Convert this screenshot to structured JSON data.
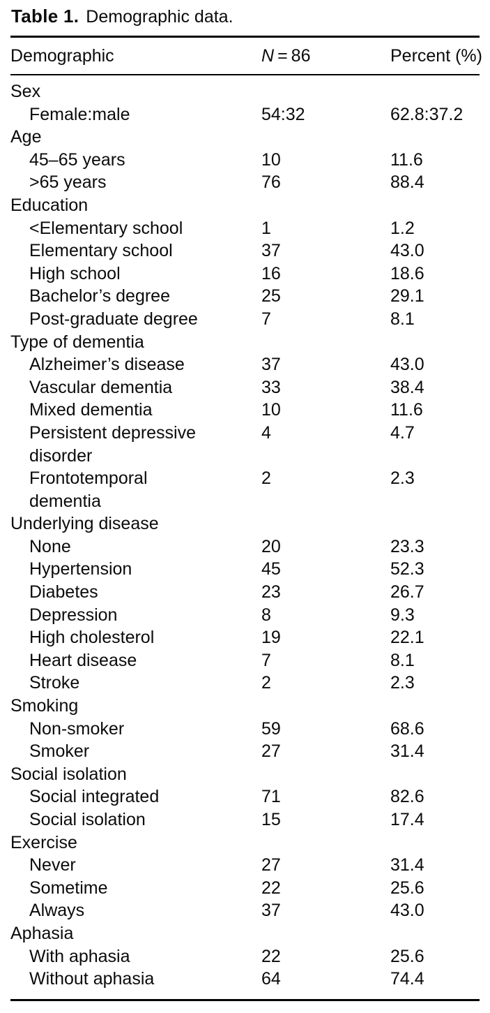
{
  "title": {
    "label": "Table 1.",
    "caption": "Demographic data."
  },
  "header": {
    "demographic": "Demographic",
    "n_prefix": "N",
    "n_suffix": " = 86",
    "percent": "Percent (%)"
  },
  "rows": [
    {
      "type": "group",
      "label": "Sex",
      "n": "",
      "pct": ""
    },
    {
      "type": "item",
      "label": "Female:male",
      "n": "54:32",
      "pct": "62.8:37.2"
    },
    {
      "type": "group",
      "label": "Age",
      "n": "",
      "pct": ""
    },
    {
      "type": "item",
      "label": "45–65 years",
      "n": "10",
      "pct": "11.6"
    },
    {
      "type": "item",
      "label": ">65 years",
      "n": "76",
      "pct": "88.4"
    },
    {
      "type": "group",
      "label": "Education",
      "n": "",
      "pct": ""
    },
    {
      "type": "item",
      "label": "<Elementary school",
      "n": "1",
      "pct": "1.2"
    },
    {
      "type": "item",
      "label": "Elementary school",
      "n": "37",
      "pct": "43.0"
    },
    {
      "type": "item",
      "label": "High school",
      "n": "16",
      "pct": "18.6"
    },
    {
      "type": "item",
      "label": "Bachelor’s degree",
      "n": "25",
      "pct": "29.1"
    },
    {
      "type": "item",
      "label": "Post-graduate degree",
      "n": "7",
      "pct": "8.1"
    },
    {
      "type": "group",
      "label": "Type of dementia",
      "n": "",
      "pct": ""
    },
    {
      "type": "item",
      "label": "Alzheimer’s disease",
      "n": "37",
      "pct": "43.0"
    },
    {
      "type": "item",
      "label": "Vascular dementia",
      "n": "33",
      "pct": "38.4"
    },
    {
      "type": "item",
      "label": "Mixed dementia",
      "n": "10",
      "pct": "11.6"
    },
    {
      "type": "item",
      "label": "Persistent depressive\ndisorder",
      "n": "4",
      "pct": "4.7"
    },
    {
      "type": "item",
      "label": "Frontotemporal\ndementia",
      "n": "2",
      "pct": "2.3"
    },
    {
      "type": "group",
      "label": "Underlying disease",
      "n": "",
      "pct": ""
    },
    {
      "type": "item",
      "label": "None",
      "n": "20",
      "pct": "23.3"
    },
    {
      "type": "item",
      "label": "Hypertension",
      "n": "45",
      "pct": "52.3"
    },
    {
      "type": "item",
      "label": "Diabetes",
      "n": "23",
      "pct": "26.7"
    },
    {
      "type": "item",
      "label": "Depression",
      "n": "8",
      "pct": "9.3"
    },
    {
      "type": "item",
      "label": "High cholesterol",
      "n": "19",
      "pct": "22.1"
    },
    {
      "type": "item",
      "label": "Heart disease",
      "n": "7",
      "pct": "8.1"
    },
    {
      "type": "item",
      "label": "Stroke",
      "n": "2",
      "pct": "2.3"
    },
    {
      "type": "group",
      "label": "Smoking",
      "n": "",
      "pct": ""
    },
    {
      "type": "item",
      "label": "Non-smoker",
      "n": "59",
      "pct": "68.6"
    },
    {
      "type": "item",
      "label": "Smoker",
      "n": "27",
      "pct": "31.4"
    },
    {
      "type": "group",
      "label": "Social isolation",
      "n": "",
      "pct": ""
    },
    {
      "type": "item",
      "label": "Social integrated",
      "n": "71",
      "pct": "82.6"
    },
    {
      "type": "item",
      "label": "Social isolation",
      "n": "15",
      "pct": "17.4"
    },
    {
      "type": "group",
      "label": "Exercise",
      "n": "",
      "pct": ""
    },
    {
      "type": "item",
      "label": "Never",
      "n": "27",
      "pct": "31.4"
    },
    {
      "type": "item",
      "label": "Sometime",
      "n": "22",
      "pct": "25.6"
    },
    {
      "type": "item",
      "label": "Always",
      "n": "37",
      "pct": "43.0"
    },
    {
      "type": "group",
      "label": "Aphasia",
      "n": "",
      "pct": ""
    },
    {
      "type": "item",
      "label": "With aphasia",
      "n": "22",
      "pct": "25.6"
    },
    {
      "type": "item",
      "label": "Without aphasia",
      "n": "64",
      "pct": "74.4"
    }
  ]
}
